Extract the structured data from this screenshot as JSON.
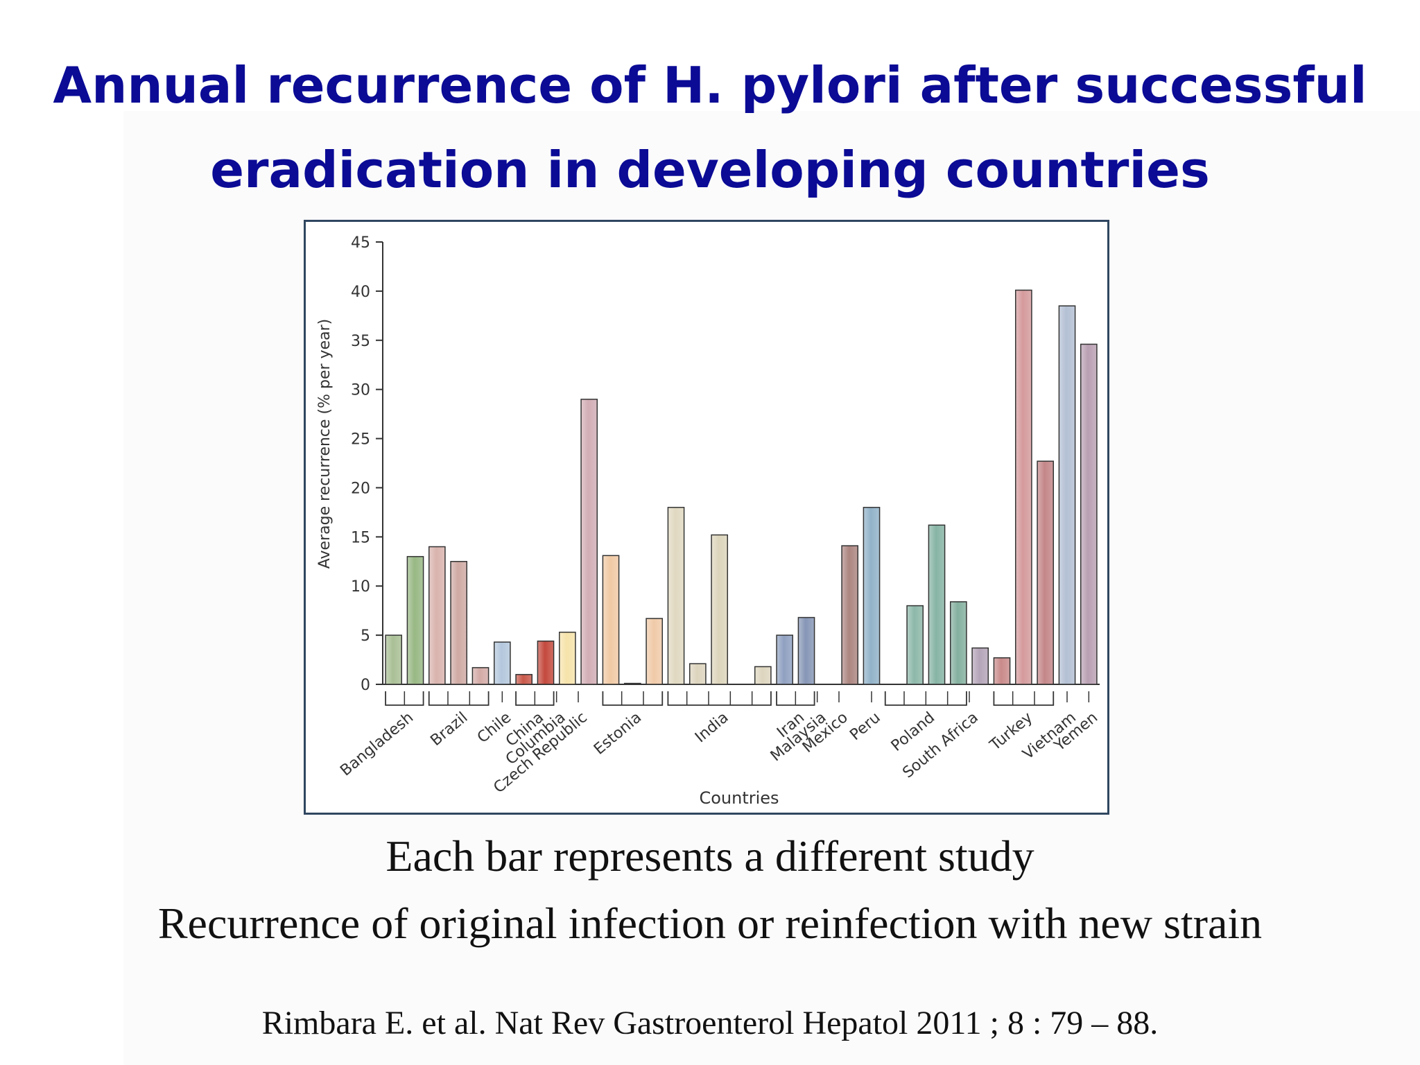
{
  "title": {
    "line1": "Annual recurrence of H. pylori after successful",
    "line2": "eradication in developing countries"
  },
  "captions": {
    "line1": "Each bar represents a different study",
    "line2": "Recurrence of original infection or reinfection with new strain"
  },
  "citation": "Rimbara E. et al. Nat Rev Gastroenterol Hepatol  2011 ; 8 : 79 – 88.",
  "colors": {
    "title": "#0b0b96",
    "frame": "#2f4660"
  },
  "chart_data": {
    "type": "bar",
    "xlabel": "Countries",
    "ylabel": "Average recurrence (% per year)",
    "ylim": [
      0,
      45
    ],
    "yticks": [
      0,
      5,
      10,
      15,
      20,
      25,
      30,
      35,
      40,
      45
    ],
    "grid": false,
    "bars": [
      {
        "country": "Bangladesh",
        "value": 5.0,
        "color": "#a9bf95"
      },
      {
        "country": "Bangladesh",
        "value": 13.0,
        "color": "#98b884"
      },
      {
        "country": "Brazil",
        "value": 14.0,
        "color": "#d9b3ad"
      },
      {
        "country": "Brazil",
        "value": 12.5,
        "color": "#cfa9a3"
      },
      {
        "country": "Brazil",
        "value": 1.7,
        "color": "#d3aaa6"
      },
      {
        "country": "Chile",
        "value": 4.3,
        "color": "#b3c7dc"
      },
      {
        "country": "China",
        "value": 1.0,
        "color": "#c9584a"
      },
      {
        "country": "Columbia",
        "value": 4.4,
        "color": "#c4493d"
      },
      {
        "country": "Czech Republic",
        "value": 5.3,
        "color": "#f6e3aa"
      },
      {
        "country": "Estonia",
        "value": 29.0,
        "color": "#d2adb5"
      },
      {
        "country": "Estonia",
        "value": 13.1,
        "color": "#f0c9a4"
      },
      {
        "country": "Estonia",
        "value": 0.1,
        "color": "#e8c29c"
      },
      {
        "country": "Estonia",
        "value": 6.7,
        "color": "#f0caa8"
      },
      {
        "country": "India",
        "value": 18.0,
        "color": "#e0d8c0"
      },
      {
        "country": "India",
        "value": 2.1,
        "color": "#ddd4bd"
      },
      {
        "country": "India",
        "value": 15.2,
        "color": "#dcd4bb"
      },
      {
        "country": "India",
        "value": 0,
        "color": "#dcd4bb"
      },
      {
        "country": "India",
        "value": 1.8,
        "color": "#ddd5be"
      },
      {
        "country": "Iran",
        "value": 5.0,
        "color": "#8fa0c0"
      },
      {
        "country": "Malaysia",
        "value": 6.8,
        "color": "#8696b6"
      },
      {
        "country": "Mexico",
        "value": 0,
        "color": "#a67f78"
      },
      {
        "country": "Mexico",
        "value": 14.1,
        "color": "#ac8580"
      },
      {
        "country": "Peru",
        "value": 18.0,
        "color": "#91b2c8"
      },
      {
        "country": "Poland",
        "value": 0,
        "color": "#88b5a8"
      },
      {
        "country": "Poland",
        "value": 8.0,
        "color": "#8db8a9"
      },
      {
        "country": "Poland",
        "value": 16.2,
        "color": "#86b4a4"
      },
      {
        "country": "Poland",
        "value": 8.4,
        "color": "#84b09f"
      },
      {
        "country": "South Africa",
        "value": 3.7,
        "color": "#b4a4b8"
      },
      {
        "country": "Turkey",
        "value": 2.7,
        "color": "#c98a8a"
      },
      {
        "country": "Turkey",
        "value": 40.1,
        "color": "#d49a9c"
      },
      {
        "country": "Turkey",
        "value": 22.7,
        "color": "#c48688"
      },
      {
        "country": "Vietnam",
        "value": 38.5,
        "color": "#b3bfd3"
      },
      {
        "country": "Yemen",
        "value": 34.6,
        "color": "#b9a0b3"
      }
    ],
    "category_labels": [
      {
        "text": "Bangladesh",
        "bars": [
          0,
          1
        ],
        "bracket": true
      },
      {
        "text": "Brazil",
        "bars": [
          2,
          4
        ],
        "bracket": true
      },
      {
        "text": "Chile",
        "bars": [
          5,
          5
        ],
        "bracket": false
      },
      {
        "text": "China",
        "bars": [
          6,
          7
        ],
        "bracket": true
      },
      {
        "text": "Columbia",
        "bars": [
          7,
          8
        ],
        "bracket": false
      },
      {
        "text": "Czech Republic",
        "bars": [
          8,
          9
        ],
        "bracket": false
      },
      {
        "text": "Estonia",
        "bars": [
          10,
          12
        ],
        "bracket": true
      },
      {
        "text": "India",
        "bars": [
          13,
          17
        ],
        "bracket": true
      },
      {
        "text": "Iran",
        "bars": [
          18,
          19
        ],
        "bracket": true
      },
      {
        "text": "Malaysia",
        "bars": [
          19,
          20
        ],
        "bracket": false
      },
      {
        "text": "Mexico",
        "bars": [
          20,
          21
        ],
        "bracket": false
      },
      {
        "text": "Peru",
        "bars": [
          22,
          22
        ],
        "bracket": false
      },
      {
        "text": "Poland",
        "bars": [
          23,
          26
        ],
        "bracket": true
      },
      {
        "text": "South Africa",
        "bars": [
          26,
          27
        ],
        "bracket": false
      },
      {
        "text": "Turkey",
        "bars": [
          28,
          30
        ],
        "bracket": true
      },
      {
        "text": "Vietnam",
        "bars": [
          31,
          31
        ],
        "bracket": false
      },
      {
        "text": "Yemen",
        "bars": [
          32,
          32
        ],
        "bracket": false
      }
    ]
  }
}
